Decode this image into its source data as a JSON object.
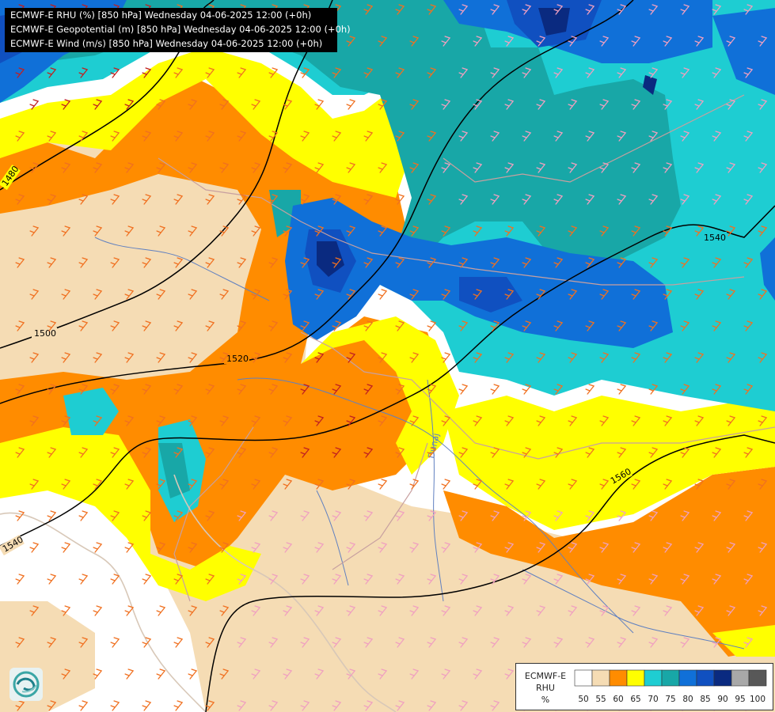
{
  "header": {
    "lines": [
      "ECMWF-E RHU (%) [850 hPa] Wednesday 04-06-2025 12:00 (+0h)",
      "ECMWF-E Geopotential (m) [850 hPa] Wednesday 04-06-2025 12:00 (+0h)",
      "ECMWF-E Wind (m/s) [850 hPa] Wednesday 04-06-2025 12:00 (+0h)"
    ]
  },
  "legend": {
    "title_lines": [
      "ECMWF-E",
      "RHU",
      "%"
    ],
    "colors": [
      "#ffffff",
      "#f5dcb4",
      "#ff8c00",
      "#ffff00",
      "#1ecdd2",
      "#18a7a7",
      "#1070d8",
      "#1050c0",
      "#0a2a80",
      "#a8a8a8",
      "#585858"
    ],
    "ticks": [
      "50",
      "55",
      "60",
      "65",
      "70",
      "75",
      "80",
      "85",
      "90",
      "95",
      "100"
    ]
  },
  "contours": {
    "labels": [
      "1480",
      "1500",
      "1520",
      "1540",
      "1540",
      "1560"
    ]
  },
  "map_text": {
    "river_label": "Dunaj"
  },
  "colors": {
    "line": "#000000",
    "border": "#c8a0a0",
    "coast": "#d8c8b8",
    "river": "#6080c0"
  },
  "icons": {
    "logo": "logo-icon"
  }
}
